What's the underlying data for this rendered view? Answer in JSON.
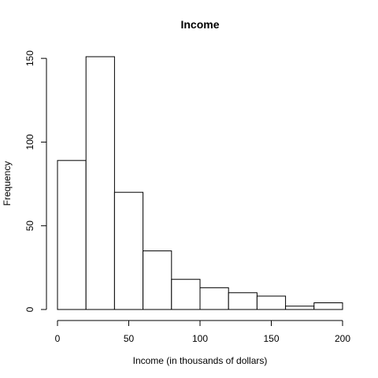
{
  "chart_data": {
    "type": "bar",
    "title": "Income",
    "xlabel": "Income (in thousands of dollars)",
    "ylabel": "Frequency",
    "bins": [
      {
        "from": 0,
        "to": 20,
        "count": 89
      },
      {
        "from": 20,
        "to": 40,
        "count": 151
      },
      {
        "from": 40,
        "to": 60,
        "count": 70
      },
      {
        "from": 60,
        "to": 80,
        "count": 35
      },
      {
        "from": 80,
        "to": 100,
        "count": 18
      },
      {
        "from": 100,
        "to": 120,
        "count": 13
      },
      {
        "from": 120,
        "to": 140,
        "count": 10
      },
      {
        "from": 140,
        "to": 160,
        "count": 8
      },
      {
        "from": 160,
        "to": 180,
        "count": 2
      },
      {
        "from": 180,
        "to": 200,
        "count": 4
      }
    ],
    "xlim": [
      0,
      200
    ],
    "ylim": [
      0,
      151
    ],
    "x_ticks": [
      "0",
      "50",
      "100",
      "150",
      "200"
    ],
    "y_ticks": [
      "0",
      "50",
      "100",
      "150"
    ],
    "grid": false,
    "bar_fill": "#ffffff",
    "bar_stroke": "#000000"
  }
}
